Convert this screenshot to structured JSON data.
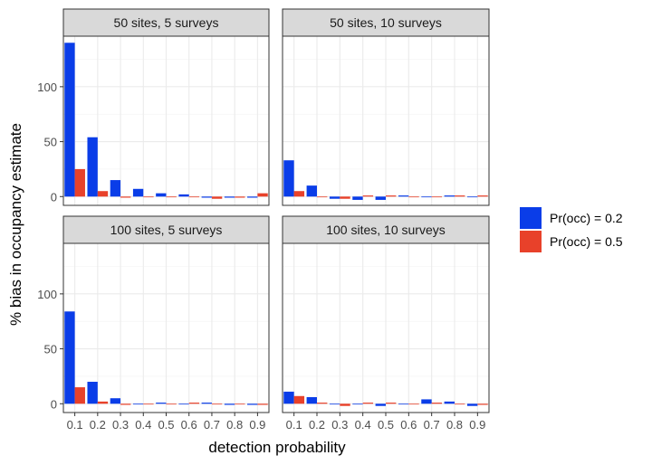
{
  "chart_data": {
    "type": "bar",
    "xlabel": "detection probability",
    "ylabel": "% bias in occupancy estimate",
    "ylim": [
      -8,
      146
    ],
    "yticks": [
      0,
      50,
      100
    ],
    "grid": true,
    "legend_position": "right",
    "categories": [
      "0.1",
      "0.2",
      "0.3",
      "0.4",
      "0.5",
      "0.6",
      "0.7",
      "0.8",
      "0.9"
    ],
    "series_names": [
      "Pr(occ) = 0.2",
      "Pr(occ) = 0.5"
    ],
    "series_colors": [
      "#0a3de8",
      "#e8412a"
    ],
    "panels": [
      {
        "title": "50 sites, 5 surveys",
        "series": [
          {
            "name": "Pr(occ) = 0.2",
            "values": [
              140,
              54,
              15,
              7,
              3,
              2,
              -1,
              -1,
              -1
            ]
          },
          {
            "name": "Pr(occ) = 0.5",
            "values": [
              25,
              5,
              -1,
              0,
              0,
              0,
              -2,
              -1,
              3
            ]
          }
        ]
      },
      {
        "title": "50 sites, 10 surveys",
        "series": [
          {
            "name": "Pr(occ) = 0.2",
            "values": [
              33,
              10,
              -2,
              -3,
              -3,
              1,
              0,
              1,
              0
            ]
          },
          {
            "name": "Pr(occ) = 0.5",
            "values": [
              5,
              0,
              -2,
              1,
              1,
              0,
              0,
              1,
              1
            ]
          }
        ]
      },
      {
        "title": "100 sites, 5 surveys",
        "series": [
          {
            "name": "Pr(occ) = 0.2",
            "values": [
              84,
              20,
              5,
              0,
              1,
              0,
              1,
              -1,
              -1
            ]
          },
          {
            "name": "Pr(occ) = 0.5",
            "values": [
              15,
              2,
              -1,
              0,
              0,
              1,
              0,
              0,
              -1
            ]
          }
        ]
      },
      {
        "title": "100 sites, 10 surveys",
        "series": [
          {
            "name": "Pr(occ) = 0.2",
            "values": [
              11,
              6,
              0,
              0,
              -2,
              0,
              4,
              2,
              -2
            ]
          },
          {
            "name": "Pr(occ) = 0.5",
            "values": [
              7,
              1,
              -2,
              1,
              1,
              0,
              1,
              0,
              -1
            ]
          }
        ]
      }
    ]
  }
}
